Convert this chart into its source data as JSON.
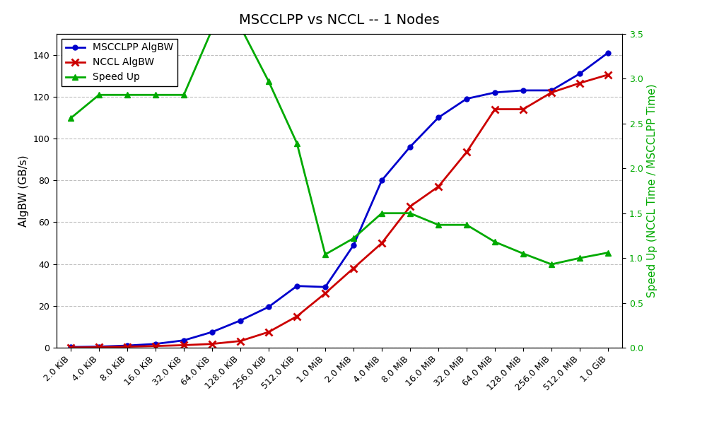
{
  "title": "MSCCLPP vs NCCL -- 1 Nodes",
  "xlabel_labels": [
    "2.0 KiB",
    "4.0 KiB",
    "8.0 KiB",
    "16.0 KiB",
    "32.0 KiB",
    "64.0 KiB",
    "128.0 KiB",
    "256.0 KiB",
    "512.0 KiB",
    "1.0 MiB",
    "2.0 MiB",
    "4.0 MiB",
    "8.0 MiB",
    "16.0 MiB",
    "32.0 MiB",
    "64.0 MiB",
    "128.0 MiB",
    "256.0 MiB",
    "512.0 MiB",
    "1.0 GiB"
  ],
  "mscclpp_algbw": [
    0.3,
    0.5,
    1.0,
    1.8,
    3.5,
    7.5,
    13.0,
    19.5,
    29.5,
    29.0,
    49.0,
    80.0,
    96.0,
    110.0,
    119.0,
    122.0,
    123.0,
    123.0,
    131.0,
    141.0
  ],
  "nccl_algbw": [
    0.1,
    0.2,
    0.5,
    0.8,
    1.2,
    1.8,
    3.2,
    7.5,
    15.0,
    26.0,
    38.0,
    50.0,
    67.5,
    77.0,
    93.5,
    114.0,
    114.0,
    122.0,
    126.5,
    130.5
  ],
  "speedup": [
    2.56,
    2.82,
    2.82,
    2.82,
    2.82,
    3.55,
    3.58,
    2.97,
    2.28,
    1.04,
    1.22,
    1.5,
    1.5,
    1.37,
    1.37,
    1.18,
    1.05,
    0.93,
    1.0,
    1.06
  ],
  "ylabel_left": "AlgBW (GB/s)",
  "ylabel_right": "Speed Up (NCCL Time / MSCCLPP Time)",
  "ylim_left": [
    0,
    150
  ],
  "ylim_right": [
    0.0,
    3.5
  ],
  "right_yticks": [
    0.0,
    0.5,
    1.0,
    1.5,
    2.0,
    2.5,
    3.0,
    3.5
  ],
  "left_yticks": [
    0,
    20,
    40,
    60,
    80,
    100,
    120,
    140
  ],
  "blue_color": "#0000cc",
  "red_color": "#cc0000",
  "green_color": "#00aa00",
  "legend_labels": [
    "MSCCLPP AlgBW",
    "NCCL AlgBW",
    "Speed Up"
  ],
  "title_fontsize": 14,
  "axis_fontsize": 11,
  "tick_fontsize": 9,
  "legend_fontsize": 10
}
